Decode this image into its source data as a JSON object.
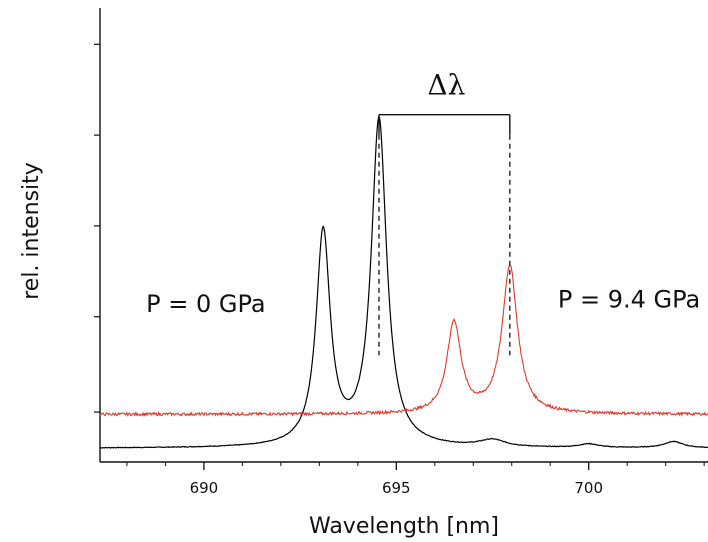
{
  "chart_data": {
    "type": "line",
    "xlabel": "Wavelength [nm]",
    "ylabel": "rel. intensity",
    "xlim": [
      687.3,
      703.1
    ],
    "ylim": [
      0,
      1
    ],
    "x_ticks": [
      690,
      695,
      700
    ],
    "x_tick_labels": [
      "690",
      "695",
      "700"
    ],
    "y_ticks": [
      0.11,
      0.32,
      0.52,
      0.72,
      0.92
    ],
    "y_tick_labels": [],
    "grid": false,
    "series": [
      {
        "color": "#000000",
        "baseline": 0.03,
        "peaks": [
          {
            "x": 693.1,
            "height": 0.47,
            "width": 0.22
          },
          {
            "x": 694.55,
            "height": 0.72,
            "width": 0.24
          }
        ],
        "extras": [
          {
            "x": 697.5,
            "height": 0.015,
            "width": 0.4
          },
          {
            "x": 700.0,
            "height": 0.008,
            "width": 0.3
          },
          {
            "x": 702.2,
            "height": 0.014,
            "width": 0.3
          }
        ]
      },
      {
        "color": "#e0392b",
        "baseline": 0.105,
        "peaks": [
          {
            "x": 696.5,
            "height": 0.2,
            "width": 0.22
          },
          {
            "x": 697.95,
            "height": 0.325,
            "width": 0.24
          }
        ],
        "extras": []
      }
    ],
    "annotations": [
      {
        "text": "P = 0 GPa",
        "x": 688.5,
        "y": 0.33
      },
      {
        "text": "P = 9.4 GPa",
        "x": 699.2,
        "y": 0.34
      },
      {
        "text": "Δλ",
        "x": 696.3,
        "y": 0.81
      }
    ],
    "bracket": {
      "x1": 694.55,
      "x2": 697.95,
      "y_top": 0.765,
      "y_bottom": 0.235
    }
  }
}
